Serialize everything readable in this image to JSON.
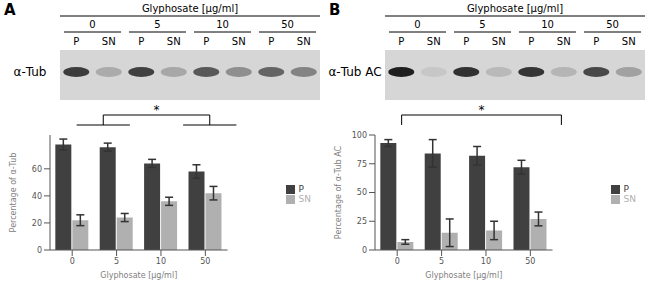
{
  "chart_data": [
    {
      "type": "bar",
      "panel": "A",
      "blot": {
        "header": "Glyphosate [µg/ml]",
        "label": "α-Tub",
        "groups": [
          "0",
          "5",
          "10",
          "50"
        ],
        "lanes": [
          "P",
          "SN"
        ]
      },
      "x_label": "Glyphosate [µg/ml]",
      "y_label": "Percentage of α-Tub",
      "categories": [
        "0",
        "5",
        "10",
        "50"
      ],
      "series": [
        {
          "name": "P",
          "color": "#404040",
          "values": [
            78,
            76,
            64,
            58
          ],
          "errors": [
            4,
            3,
            3,
            5
          ]
        },
        {
          "name": "SN",
          "color": "#b0b0b0",
          "values": [
            22,
            24,
            36,
            42
          ],
          "errors": [
            4,
            3,
            3,
            5
          ]
        }
      ],
      "ylim": [
        0,
        85
      ],
      "yticks": [
        0,
        20,
        40,
        60
      ],
      "grid": false,
      "legend": "right",
      "annotations": [
        {
          "text": "*",
          "from": [
            "0",
            "5"
          ],
          "to": [
            "10",
            "50"
          ]
        }
      ]
    },
    {
      "type": "bar",
      "panel": "B",
      "blot": {
        "header": "Glyphosate [µg/ml]",
        "label": "α-Tub AC",
        "groups": [
          "0",
          "5",
          "10",
          "50"
        ],
        "lanes": [
          "P",
          "SN"
        ]
      },
      "x_label": "Glyphosate [µg/ml]",
      "y_label": "Percentage of α-Tub AC",
      "categories": [
        "0",
        "5",
        "10",
        "50"
      ],
      "series": [
        {
          "name": "P",
          "color": "#404040",
          "values": [
            93,
            84,
            82,
            72
          ],
          "errors": [
            3,
            12,
            8,
            6
          ]
        },
        {
          "name": "SN",
          "color": "#b0b0b0",
          "values": [
            7,
            15,
            17,
            27
          ],
          "errors": [
            2,
            12,
            8,
            6
          ]
        }
      ],
      "ylim": [
        0,
        100
      ],
      "yticks": [
        0,
        25,
        50,
        75,
        100
      ],
      "grid": false,
      "legend": "right",
      "annotations": [
        {
          "text": "*",
          "from": [
            "0"
          ],
          "to": [
            "50"
          ]
        }
      ]
    }
  ]
}
